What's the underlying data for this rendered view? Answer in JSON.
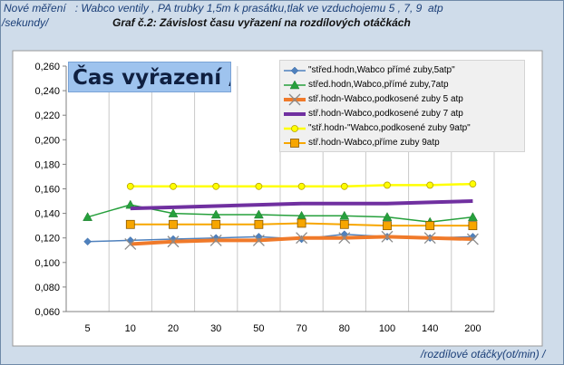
{
  "header": {
    "description": "Nové měření   : Wabco ventily , PA trubky 1,5m k prasátku,tlak ve vzduchojemu 5 , 7, 9  atp",
    "y_units": "/sekundy/",
    "x_units": "/rozdílové otáčky(ot/min) /"
  },
  "chart_data": {
    "type": "line",
    "title": "Graf č.2: Závislost času vyřazení na rozdílových otáčkách",
    "label_box": "Čas vyřazení /sec/",
    "xlabel": "/rozdílové otáčky(ot/min) /",
    "ylabel": "/sekundy/",
    "categories": [
      "5",
      "10",
      "20",
      "30",
      "50",
      "70",
      "80",
      "100",
      "140",
      "200"
    ],
    "ylim": [
      0.06,
      0.26
    ],
    "yticks": [
      "0,060",
      "0,080",
      "0,100",
      "0,120",
      "0,140",
      "0,160",
      "0,180",
      "0,200",
      "0,220",
      "0,240",
      "0,260"
    ],
    "grid": "vertical",
    "legend_position": "top-right",
    "series": [
      {
        "name": "\"střed.hodn,Wabco přímé zuby,5atp\"",
        "color": "#4f81bd",
        "marker": "diamond",
        "width": 1.5,
        "values": [
          0.117,
          0.118,
          0.119,
          0.12,
          0.121,
          0.119,
          0.123,
          0.121,
          0.12,
          0.121
        ]
      },
      {
        "name": "střed.hodn,Wabco,přímé zuby,7atp",
        "color": "#26a03c",
        "marker": "triangle",
        "width": 1.5,
        "values": [
          0.137,
          0.147,
          0.14,
          0.139,
          0.139,
          0.138,
          0.138,
          0.137,
          0.133,
          0.137
        ]
      },
      {
        "name": "stř.hodn-Wabco,podkosené zuby 5 atp",
        "color": "#f07a2a",
        "marker": "x",
        "width": 4,
        "values": [
          null,
          0.115,
          0.117,
          0.118,
          0.118,
          0.12,
          0.12,
          0.121,
          0.12,
          0.119
        ]
      },
      {
        "name": "stř.hodn-Wabco,podkosené zuby 7 atp",
        "color": "#7030a0",
        "marker": "none",
        "width": 4,
        "values": [
          null,
          0.144,
          0.145,
          0.146,
          0.147,
          0.148,
          0.148,
          0.148,
          0.149,
          0.15
        ]
      },
      {
        "name": "\"stř.hodn-\"Wabco,podkosené zuby 9atp\"",
        "color": "#ffff00",
        "marker": "circle",
        "width": 2.5,
        "values": [
          null,
          0.162,
          0.162,
          0.162,
          0.162,
          0.162,
          0.162,
          0.163,
          0.163,
          0.164
        ]
      },
      {
        "name": "stř.hodn-Wabco,příme zuby 9atp",
        "color": "#f7a600",
        "marker": "square",
        "width": 2,
        "values": [
          null,
          0.131,
          0.131,
          0.131,
          0.131,
          0.132,
          0.131,
          0.13,
          0.13,
          0.13
        ]
      }
    ]
  }
}
